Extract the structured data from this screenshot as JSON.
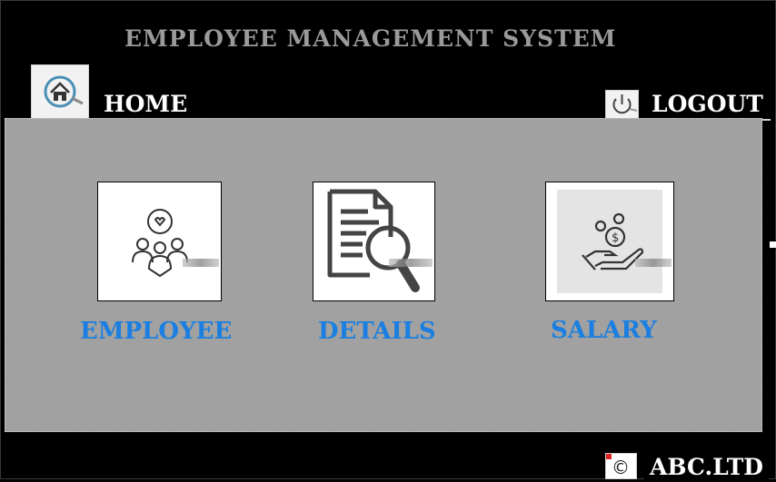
{
  "header": {
    "title": "EMPLOYEE MANAGEMENT SYSTEM",
    "home_label": "HOME",
    "logout_label": "LOGOUT",
    "home_icon": "home-icon",
    "logout_icon": "power-icon"
  },
  "tiles": [
    {
      "label": "EMPLOYEE",
      "icon": "people-heart-icon"
    },
    {
      "label": "DETAILS",
      "icon": "document-search-icon"
    },
    {
      "label": "SALARY",
      "icon": "hand-coins-icon"
    }
  ],
  "footer": {
    "company": "ABC.LTD",
    "icon": "copyright-icon",
    "icon_glyph": "©"
  },
  "colors": {
    "background": "#000000",
    "panel": "#a1a1a1",
    "title": "#9a9a9a",
    "tile_label": "#1a7fe0"
  }
}
